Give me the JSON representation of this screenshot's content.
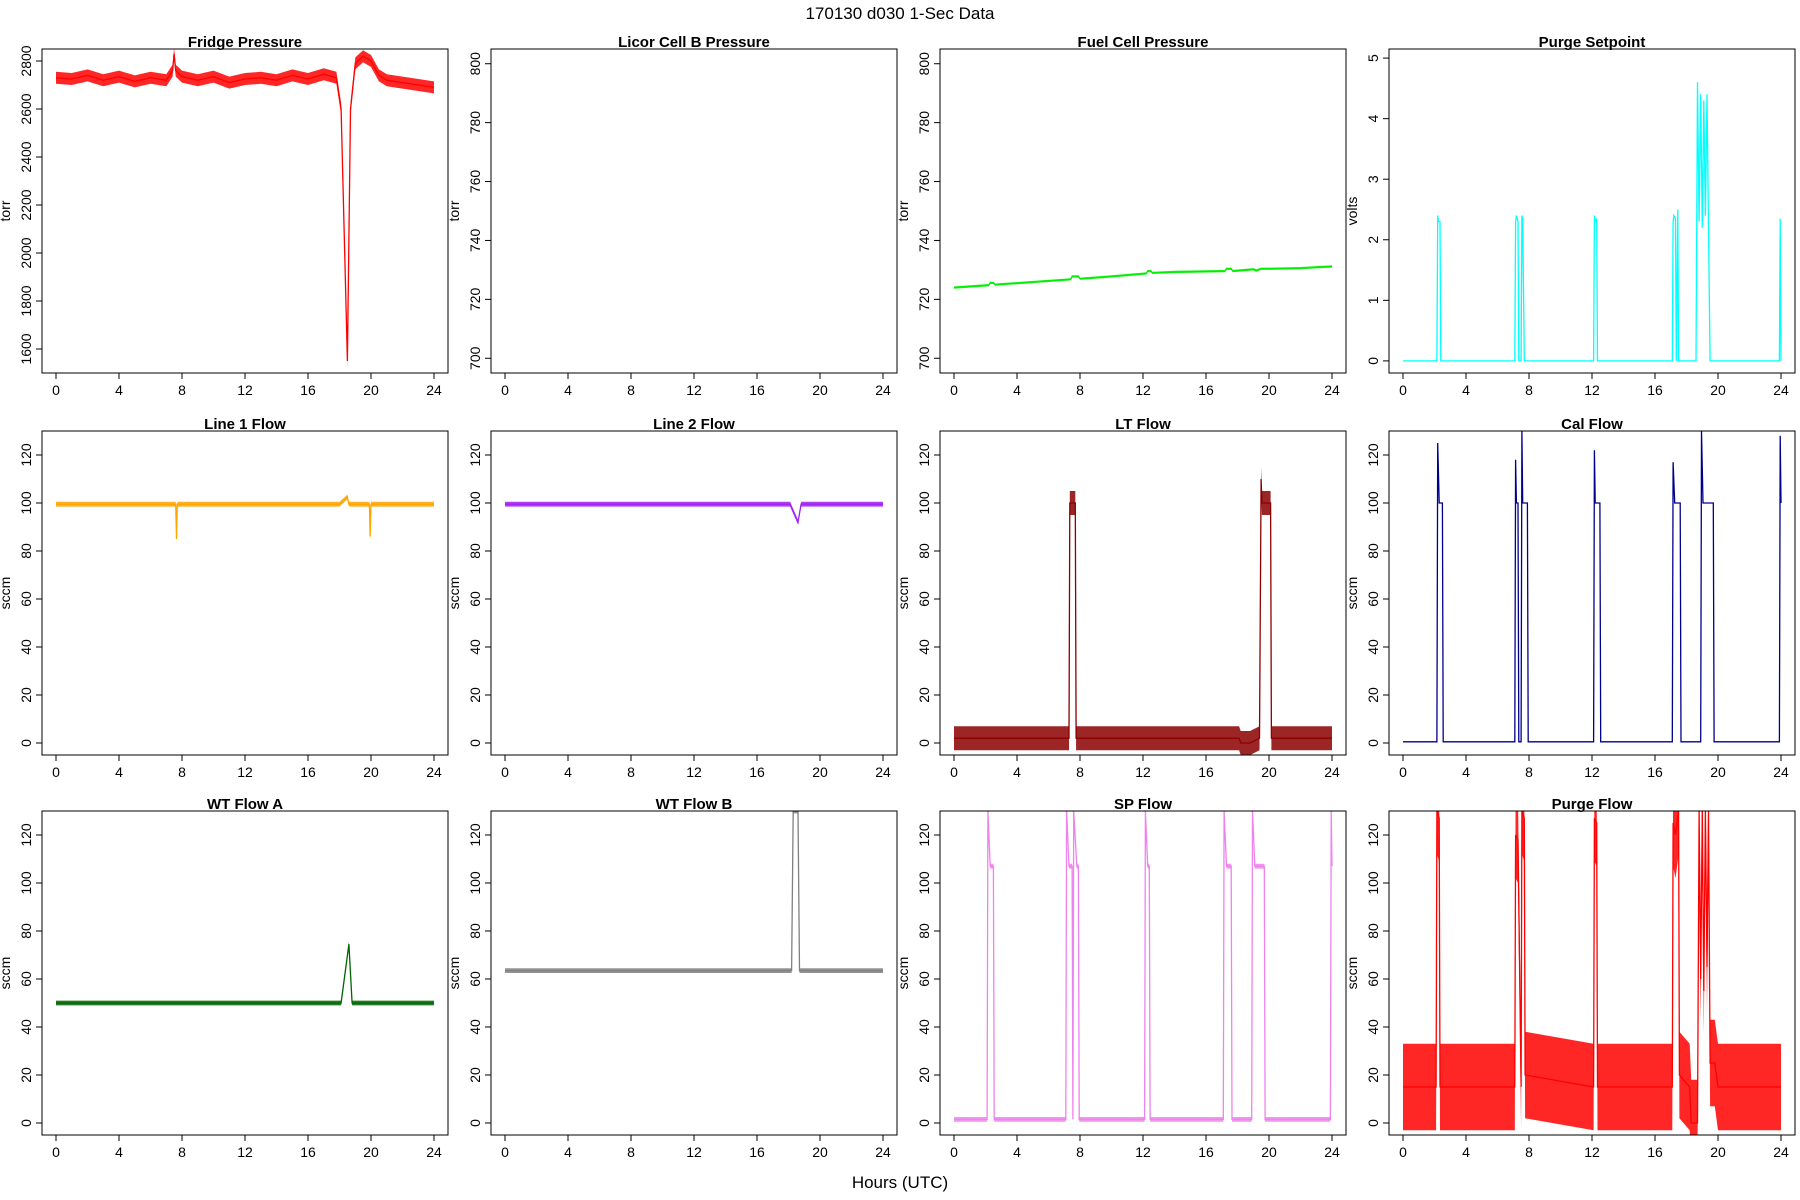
{
  "figure": {
    "title": "170130   d030   1-Sec Data",
    "xlabel": "Hours (UTC)"
  },
  "chart_data": [
    {
      "type": "line",
      "title": "Fridge Pressure",
      "ylabel": "torr",
      "color": "#ff0000",
      "xlim": [
        0,
        24
      ],
      "ylim": [
        1500,
        2850
      ],
      "xticks": [
        0,
        4,
        8,
        12,
        16,
        20,
        24
      ],
      "yticks": [
        1600,
        1800,
        2000,
        2200,
        2400,
        2600,
        2800
      ],
      "series": [
        {
          "x": [
            0,
            1,
            2,
            3,
            4,
            5,
            6,
            7,
            7.4,
            7.5,
            7.6,
            8,
            9,
            10,
            11,
            12,
            13,
            14,
            15,
            16,
            17,
            17.8,
            18.1,
            18.5,
            18.7,
            19,
            19.5,
            20,
            20.5,
            21,
            22,
            23,
            24
          ],
          "y": [
            2730,
            2725,
            2740,
            2720,
            2735,
            2715,
            2730,
            2720,
            2760,
            2830,
            2760,
            2735,
            2720,
            2735,
            2710,
            2725,
            2730,
            2720,
            2740,
            2725,
            2745,
            2730,
            2600,
            1550,
            2600,
            2790,
            2820,
            2800,
            2740,
            2720,
            2710,
            2700,
            2690
          ],
          "band": 25
        }
      ]
    },
    {
      "type": "line",
      "title": "Licor Cell B Pressure",
      "ylabel": "torr",
      "color": "#000000",
      "xlim": [
        0,
        24
      ],
      "ylim": [
        695,
        805
      ],
      "xticks": [
        0,
        4,
        8,
        12,
        16,
        20,
        24
      ],
      "yticks": [
        700,
        720,
        740,
        760,
        780,
        800
      ],
      "series": []
    },
    {
      "type": "line",
      "title": "Fuel Cell Pressure",
      "ylabel": "torr",
      "color": "#00ee00",
      "xlim": [
        0,
        24
      ],
      "ylim": [
        695,
        805
      ],
      "xticks": [
        0,
        4,
        8,
        12,
        16,
        20,
        24
      ],
      "yticks": [
        700,
        720,
        740,
        760,
        780,
        800
      ],
      "series": [
        {
          "x": [
            0,
            2.2,
            2.3,
            2.5,
            2.6,
            4,
            7.4,
            7.5,
            7.9,
            8.0,
            10,
            12.2,
            12.3,
            12.5,
            12.6,
            14,
            17.2,
            17.3,
            17.6,
            17.7,
            19,
            19.2,
            19.5,
            20,
            22,
            24
          ],
          "y": [
            724,
            724.8,
            725.6,
            725.6,
            725,
            725.5,
            726.8,
            727.8,
            727.8,
            727,
            727.8,
            728.8,
            729.6,
            729.6,
            729,
            729.3,
            729.6,
            730.4,
            730.4,
            729.6,
            730.2,
            729.8,
            730.4,
            730.4,
            730.6,
            731.2
          ],
          "band": 0.4
        }
      ]
    },
    {
      "type": "line",
      "title": "Purge Setpoint",
      "ylabel": "volts",
      "color": "#00ffff",
      "xlim": [
        0,
        24
      ],
      "ylim": [
        -0.2,
        5.15
      ],
      "xticks": [
        0,
        4,
        8,
        12,
        16,
        20,
        24
      ],
      "yticks": [
        0,
        1,
        2,
        3,
        4,
        5
      ],
      "series": [
        {
          "x": [
            0,
            2.15,
            2.2,
            2.25,
            2.35,
            2.4,
            2.5,
            7.1,
            7.15,
            7.2,
            7.3,
            7.35,
            7.5,
            7.55,
            7.6,
            7.7,
            12.1,
            12.15,
            12.2,
            12.3,
            12.35,
            17.1,
            17.15,
            17.2,
            17.3,
            17.35,
            17.45,
            17.5,
            18.6,
            18.7,
            18.8,
            18.9,
            19,
            19.1,
            19.2,
            19.3,
            19.4,
            19.5,
            23.9,
            23.95,
            24
          ],
          "y": [
            0,
            0,
            2.4,
            2.3,
            2.3,
            0,
            0,
            0,
            2.3,
            2.4,
            2.3,
            0,
            0,
            2.4,
            2.35,
            0,
            0,
            2.4,
            2.3,
            2.35,
            0,
            0,
            2.3,
            2.4,
            2.35,
            0,
            2.5,
            0,
            0,
            4.6,
            2.3,
            4.4,
            2.2,
            4.3,
            2.4,
            4.4,
            2.2,
            0,
            0,
            2.35,
            0
          ],
          "band": 0
        }
      ]
    },
    {
      "type": "line",
      "title": "Line 1 Flow",
      "ylabel": "sccm",
      "color": "#ffa500",
      "xlim": [
        0,
        24
      ],
      "ylim": [
        -5,
        130
      ],
      "xticks": [
        0,
        4,
        8,
        12,
        16,
        20,
        24
      ],
      "yticks": [
        0,
        20,
        40,
        60,
        80,
        100,
        120
      ],
      "series": [
        {
          "x": [
            0,
            7.6,
            7.65,
            7.7,
            12,
            18,
            18.5,
            18.6,
            18.9,
            19.9,
            19.95,
            20,
            24
          ],
          "y": [
            99.5,
            99.5,
            85,
            99.5,
            99.5,
            99.5,
            102.5,
            99.5,
            99.5,
            99.5,
            86,
            99.5,
            99.5
          ],
          "band": 1
        }
      ]
    },
    {
      "type": "line",
      "title": "Line 2 Flow",
      "ylabel": "sccm",
      "color": "#a020f0",
      "xlim": [
        0,
        24
      ],
      "ylim": [
        -5,
        130
      ],
      "xticks": [
        0,
        4,
        8,
        12,
        16,
        20,
        24
      ],
      "yticks": [
        0,
        20,
        40,
        60,
        80,
        100,
        120
      ],
      "series": [
        {
          "x": [
            0,
            10,
            18.1,
            18.6,
            18.8,
            20,
            24
          ],
          "y": [
            99.5,
            99.5,
            99.5,
            92,
            99.5,
            99.5,
            99.5
          ],
          "band": 1
        }
      ]
    },
    {
      "type": "line",
      "title": "LT Flow",
      "ylabel": "sccm",
      "color": "#8b0000",
      "xlim": [
        0,
        24
      ],
      "ylim": [
        -5,
        130
      ],
      "xticks": [
        0,
        4,
        8,
        12,
        16,
        20,
        24
      ],
      "yticks": [
        0,
        20,
        40,
        60,
        80,
        100,
        120
      ],
      "series": [
        {
          "x": [
            0,
            7.3,
            7.35,
            7.5,
            7.7,
            7.75,
            18.1,
            18.2,
            18.8,
            19.4,
            19.5,
            19.55,
            19.7,
            20.1,
            20.15,
            24
          ],
          "y": [
            2,
            2,
            100,
            100,
            100,
            2,
            2,
            0,
            0,
            2,
            110,
            100,
            100,
            100,
            2,
            2
          ],
          "band": 5
        }
      ]
    },
    {
      "type": "line",
      "title": "Cal Flow",
      "ylabel": "sccm",
      "color": "#00008b",
      "xlim": [
        0,
        24
      ],
      "ylim": [
        -5,
        130
      ],
      "xticks": [
        0,
        4,
        8,
        12,
        16,
        20,
        24
      ],
      "yticks": [
        0,
        20,
        40,
        60,
        80,
        100,
        120
      ],
      "series": [
        {
          "x": [
            0,
            2.15,
            2.2,
            2.3,
            2.5,
            2.55,
            7.1,
            7.15,
            7.2,
            7.3,
            7.35,
            7.5,
            7.55,
            7.6,
            7.7,
            7.9,
            7.95,
            12.1,
            12.15,
            12.2,
            12.3,
            12.5,
            12.55,
            17.1,
            17.15,
            17.25,
            17.6,
            17.65,
            18.9,
            18.95,
            19.05,
            19.7,
            19.75,
            23.9,
            23.95,
            24
          ],
          "y": [
            0.5,
            0.5,
            125,
            100,
            100,
            0.5,
            0.5,
            118,
            100,
            100,
            0.5,
            0.5,
            130,
            100,
            100,
            100,
            0.5,
            0.5,
            122,
            100,
            100,
            100,
            0.5,
            0.5,
            117,
            100,
            100,
            0.5,
            0.5,
            130,
            100,
            100,
            0.5,
            0.5,
            128,
            100
          ],
          "band": 0
        }
      ]
    },
    {
      "type": "line",
      "title": "WT Flow A",
      "ylabel": "sccm",
      "color": "#006400",
      "xlim": [
        0,
        24
      ],
      "ylim": [
        -5,
        130
      ],
      "xticks": [
        0,
        4,
        8,
        12,
        16,
        20,
        24
      ],
      "yticks": [
        0,
        20,
        40,
        60,
        80,
        100,
        120
      ],
      "series": [
        {
          "x": [
            0,
            10,
            18.1,
            18.6,
            18.8,
            20,
            24
          ],
          "y": [
            50,
            50,
            50,
            74.5,
            50,
            50,
            50
          ],
          "band": 1
        }
      ]
    },
    {
      "type": "line",
      "title": "WT Flow B",
      "ylabel": "sccm",
      "color": "#808080",
      "xlim": [
        0,
        24
      ],
      "ylim": [
        -5,
        130
      ],
      "xticks": [
        0,
        4,
        8,
        12,
        16,
        20,
        24
      ],
      "yticks": [
        0,
        20,
        40,
        60,
        80,
        100,
        120
      ],
      "series": [
        {
          "x": [
            0,
            10,
            18.2,
            18.3,
            18.6,
            18.7,
            20,
            24
          ],
          "y": [
            63.5,
            63.5,
            63.5,
            130,
            130,
            63.5,
            63.5,
            63.5
          ],
          "band": 1
        }
      ]
    },
    {
      "type": "line",
      "title": "SP Flow",
      "ylabel": "sccm",
      "color": "#ee82ee",
      "xlim": [
        0,
        24
      ],
      "ylim": [
        -5,
        130
      ],
      "xticks": [
        0,
        4,
        8,
        12,
        16,
        20,
        24
      ],
      "yticks": [
        0,
        20,
        40,
        60,
        80,
        100,
        120
      ],
      "series": [
        {
          "x": [
            0,
            2.1,
            2.15,
            2.3,
            2.5,
            2.55,
            7.1,
            7.15,
            7.3,
            7.5,
            7.55,
            7.6,
            7.8,
            7.9,
            7.95,
            12.1,
            12.15,
            12.3,
            12.4,
            12.45,
            17.1,
            17.15,
            17.3,
            17.6,
            17.65,
            18.9,
            18.95,
            19.1,
            19.7,
            19.75,
            23.9,
            23.95,
            24
          ],
          "y": [
            1.5,
            1.5,
            130,
            107,
            107,
            1.5,
            1.5,
            130,
            107,
            107,
            1.5,
            130,
            107,
            107,
            1.5,
            1.5,
            130,
            107,
            107,
            1.5,
            1.5,
            130,
            107,
            107,
            1.5,
            1.5,
            130,
            107,
            107,
            1.5,
            1.5,
            130,
            107
          ],
          "band": 1
        }
      ]
    },
    {
      "type": "line",
      "title": "Purge Flow",
      "ylabel": "sccm",
      "color": "#ff0000",
      "xlim": [
        0,
        24
      ],
      "ylim": [
        -5,
        130
      ],
      "xticks": [
        0,
        4,
        8,
        12,
        16,
        20,
        24
      ],
      "yticks": [
        0,
        20,
        40,
        60,
        80,
        100,
        120
      ],
      "series": [
        {
          "x": [
            0,
            2.1,
            2.15,
            2.3,
            2.35,
            7.1,
            7.15,
            7.3,
            7.5,
            7.55,
            7.7,
            7.75,
            12.1,
            12.15,
            12.3,
            12.35,
            17.1,
            17.15,
            17.3,
            17.5,
            17.55,
            18.2,
            18.3,
            18.7,
            18.8,
            18.9,
            19.0,
            19.1,
            19.2,
            19.3,
            19.4,
            19.5,
            19.8,
            20,
            24
          ],
          "y": [
            15,
            15,
            130,
            127,
            15,
            15,
            120,
            118,
            15,
            130,
            127,
            20,
            15,
            127,
            125,
            15,
            15,
            125,
            120,
            130,
            20,
            15,
            0,
            0,
            130,
            60,
            130,
            55,
            130,
            65,
            130,
            25,
            25,
            15,
            15
          ],
          "band": 18
        }
      ]
    }
  ]
}
